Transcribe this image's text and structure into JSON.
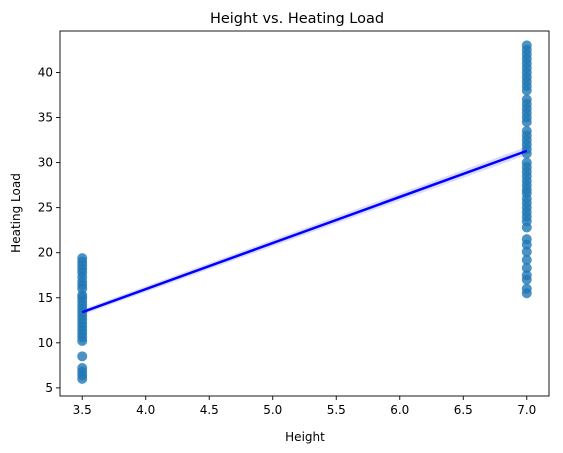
{
  "chart_data": {
    "type": "scatter",
    "title": "Height vs. Heating Load",
    "xlabel": "Height",
    "ylabel": "Heating Load",
    "xlim": [
      3.325,
      7.175
    ],
    "ylim": [
      4.1,
      44.6
    ],
    "grid": false,
    "x_ticks": [
      {
        "value": 3.5,
        "label": "3.5"
      },
      {
        "value": 4.0,
        "label": "4.0"
      },
      {
        "value": 4.5,
        "label": "4.5"
      },
      {
        "value": 5.0,
        "label": "5.0"
      },
      {
        "value": 5.5,
        "label": "5.5"
      },
      {
        "value": 6.0,
        "label": "6.0"
      },
      {
        "value": 6.5,
        "label": "6.5"
      },
      {
        "value": 7.0,
        "label": "7.0"
      }
    ],
    "y_ticks": [
      {
        "value": 5,
        "label": "5"
      },
      {
        "value": 10,
        "label": "10"
      },
      {
        "value": 15,
        "label": "15"
      },
      {
        "value": 20,
        "label": "20"
      },
      {
        "value": 25,
        "label": "25"
      },
      {
        "value": 30,
        "label": "30"
      },
      {
        "value": 35,
        "label": "35"
      },
      {
        "value": 40,
        "label": "40"
      }
    ],
    "point_color": "#1f77b4",
    "line_color": "#0000ff",
    "ci_color": "#9999ff",
    "series": [
      {
        "values": [
          {
            "x": 3.5,
            "y": 6.0
          },
          {
            "x": 3.5,
            "y": 6.4
          },
          {
            "x": 3.5,
            "y": 6.8
          },
          {
            "x": 3.5,
            "y": 7.2
          },
          {
            "x": 3.5,
            "y": 8.5
          },
          {
            "x": 3.5,
            "y": 10.2
          },
          {
            "x": 3.5,
            "y": 10.6
          },
          {
            "x": 3.5,
            "y": 11.0
          },
          {
            "x": 3.5,
            "y": 11.4
          },
          {
            "x": 3.5,
            "y": 11.8
          },
          {
            "x": 3.5,
            "y": 12.2
          },
          {
            "x": 3.5,
            "y": 12.6
          },
          {
            "x": 3.5,
            "y": 13.0
          },
          {
            "x": 3.5,
            "y": 13.4
          },
          {
            "x": 3.5,
            "y": 13.8
          },
          {
            "x": 3.5,
            "y": 14.2
          },
          {
            "x": 3.5,
            "y": 14.6
          },
          {
            "x": 3.5,
            "y": 15.0
          },
          {
            "x": 3.5,
            "y": 15.3
          },
          {
            "x": 3.5,
            "y": 16.0
          },
          {
            "x": 3.5,
            "y": 16.4
          },
          {
            "x": 3.5,
            "y": 16.8
          },
          {
            "x": 3.5,
            "y": 17.3
          },
          {
            "x": 3.5,
            "y": 17.8
          },
          {
            "x": 3.5,
            "y": 18.2
          },
          {
            "x": 3.5,
            "y": 18.6
          },
          {
            "x": 3.5,
            "y": 19.0
          },
          {
            "x": 3.5,
            "y": 19.4
          },
          {
            "x": 7.0,
            "y": 15.5
          },
          {
            "x": 7.0,
            "y": 16.0
          },
          {
            "x": 7.0,
            "y": 17.0
          },
          {
            "x": 7.0,
            "y": 17.5
          },
          {
            "x": 7.0,
            "y": 18.3
          },
          {
            "x": 7.0,
            "y": 19.2
          },
          {
            "x": 7.0,
            "y": 20.1
          },
          {
            "x": 7.0,
            "y": 20.9
          },
          {
            "x": 7.0,
            "y": 21.5
          },
          {
            "x": 7.0,
            "y": 22.8
          },
          {
            "x": 7.0,
            "y": 23.5
          },
          {
            "x": 7.0,
            "y": 24.0
          },
          {
            "x": 7.0,
            "y": 24.5
          },
          {
            "x": 7.0,
            "y": 25.0
          },
          {
            "x": 7.0,
            "y": 25.5
          },
          {
            "x": 7.0,
            "y": 26.0
          },
          {
            "x": 7.0,
            "y": 26.6
          },
          {
            "x": 7.0,
            "y": 27.0
          },
          {
            "x": 7.0,
            "y": 27.5
          },
          {
            "x": 7.0,
            "y": 28.0
          },
          {
            "x": 7.0,
            "y": 28.5
          },
          {
            "x": 7.0,
            "y": 29.0
          },
          {
            "x": 7.0,
            "y": 29.5
          },
          {
            "x": 7.0,
            "y": 30.0
          },
          {
            "x": 7.0,
            "y": 31.0
          },
          {
            "x": 7.0,
            "y": 31.5
          },
          {
            "x": 7.0,
            "y": 32.0
          },
          {
            "x": 7.0,
            "y": 32.5
          },
          {
            "x": 7.0,
            "y": 33.0
          },
          {
            "x": 7.0,
            "y": 33.5
          },
          {
            "x": 7.0,
            "y": 34.5
          },
          {
            "x": 7.0,
            "y": 35.0
          },
          {
            "x": 7.0,
            "y": 35.5
          },
          {
            "x": 7.0,
            "y": 36.0
          },
          {
            "x": 7.0,
            "y": 36.5
          },
          {
            "x": 7.0,
            "y": 37.0
          },
          {
            "x": 7.0,
            "y": 38.0
          },
          {
            "x": 7.0,
            "y": 38.5
          },
          {
            "x": 7.0,
            "y": 39.0
          },
          {
            "x": 7.0,
            "y": 39.5
          },
          {
            "x": 7.0,
            "y": 40.0
          },
          {
            "x": 7.0,
            "y": 40.5
          },
          {
            "x": 7.0,
            "y": 41.0
          },
          {
            "x": 7.0,
            "y": 41.5
          },
          {
            "x": 7.0,
            "y": 42.0
          },
          {
            "x": 7.0,
            "y": 42.5
          },
          {
            "x": 7.0,
            "y": 43.0
          }
        ]
      }
    ],
    "regression_line": {
      "x": [
        3.5,
        7.0
      ],
      "y": [
        13.4,
        31.3
      ],
      "ci_halfwidth": [
        0.3,
        0.45
      ]
    }
  }
}
